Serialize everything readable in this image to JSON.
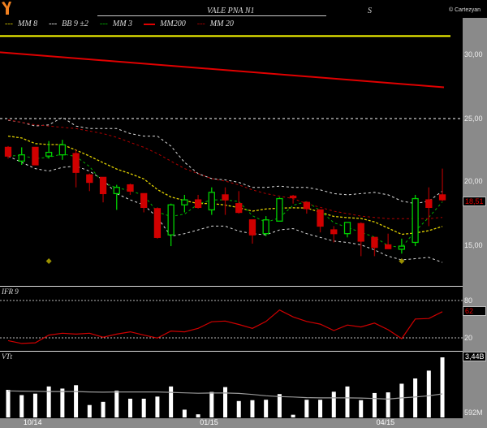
{
  "header": {
    "title": "VALE PNA N1",
    "period": "S",
    "copyright": "© Cartezyan"
  },
  "legend": [
    {
      "label": "MM  8",
      "color": "#e0d000",
      "style": "dashed"
    },
    {
      "label": "BB  9 ±2",
      "color": "#ffffff",
      "style": "dashed"
    },
    {
      "label": "MM  3",
      "color": "#00c000",
      "style": "dashed"
    },
    {
      "label": "MM200",
      "color": "#e00000",
      "style": "solid"
    },
    {
      "label": "MM 20",
      "color": "#c00000",
      "style": "dashed"
    }
  ],
  "colors": {
    "up": "#00d000",
    "down": "#d00000",
    "axis_panel": "#8a8a8a",
    "mm200": "#e00000",
    "level_line": "#ffff00",
    "marker": "#9a9000"
  },
  "panels": {
    "ifr_label": "IFR 9",
    "vol_label": "VTt"
  },
  "chart_data": [
    {
      "type": "candlestick",
      "title": "VALE PNA N1",
      "ylim": [
        12,
        32
      ],
      "yticks": [
        "30,00",
        "25,00",
        "20,00",
        "15,00"
      ],
      "last_value": "18,51",
      "level_lines": [
        {
          "value": 31.6,
          "color": "#ffff00",
          "style": "solid"
        },
        {
          "value": 25,
          "color": "#ffffff",
          "style": "dotted"
        }
      ],
      "candles": [
        [
          22.7,
          22.8,
          21.8,
          22.0
        ],
        [
          21.6,
          22.7,
          21.3,
          22.1
        ],
        [
          22.7,
          22.7,
          21.3,
          21.3
        ],
        [
          22.0,
          23.2,
          21.8,
          22.3
        ],
        [
          22.1,
          23.3,
          21.7,
          22.9
        ],
        [
          22.2,
          22.5,
          19.5,
          20.7
        ],
        [
          20.5,
          20.6,
          19.2,
          19.9
        ],
        [
          20.3,
          20.3,
          18.3,
          19.0
        ],
        [
          19.0,
          19.7,
          17.7,
          19.5
        ],
        [
          19.7,
          19.8,
          18.9,
          19.2
        ],
        [
          19.0,
          19.0,
          17.5,
          17.9
        ],
        [
          17.8,
          17.9,
          15.4,
          15.5
        ],
        [
          15.7,
          18.2,
          14.8,
          18.1
        ],
        [
          18.1,
          18.9,
          17.5,
          18.5
        ],
        [
          18.5,
          18.9,
          17.8,
          17.9
        ],
        [
          17.7,
          19.5,
          17.3,
          19.1
        ],
        [
          18.9,
          19.5,
          17.3,
          18.5
        ],
        [
          18.2,
          19.2,
          17.4,
          17.5
        ],
        [
          16.9,
          16.9,
          15.0,
          15.7
        ],
        [
          15.8,
          17.2,
          15.6,
          16.9
        ],
        [
          16.8,
          18.7,
          16.8,
          18.6
        ],
        [
          18.8,
          18.9,
          18.2,
          18.7
        ],
        [
          18.3,
          18.4,
          17.4,
          17.8
        ],
        [
          17.7,
          17.7,
          15.9,
          16.4
        ],
        [
          16.1,
          16.4,
          15.1,
          15.8
        ],
        [
          15.8,
          16.7,
          15.5,
          16.7
        ],
        [
          16.6,
          16.7,
          14.0,
          15.2
        ],
        [
          15.5,
          15.5,
          14.0,
          14.7
        ],
        [
          14.9,
          15.8,
          14.6,
          14.6
        ],
        [
          14.55,
          15.4,
          14.2,
          14.8
        ],
        [
          15.1,
          18.9,
          14.8,
          18.6
        ],
        [
          18.5,
          19.5,
          16.4,
          17.9
        ],
        [
          18.9,
          21.0,
          18.4,
          18.51
        ]
      ],
      "candle_fields": [
        "open",
        "high",
        "low",
        "close"
      ],
      "mm200": {
        "start": 30.3,
        "end": 27.5
      },
      "bb_upper": [
        24.87,
        24.7,
        24.4,
        24.5,
        25.1,
        24.4,
        24.2,
        24.2,
        24.2,
        23.8,
        23.6,
        23.6,
        22.8,
        21.5,
        20.6,
        20.2,
        20.1,
        19.9,
        19.5,
        19.5,
        19.6,
        19.5,
        19.5,
        19.3,
        19.0,
        18.9,
        19.0,
        19.1,
        18.9,
        18.4,
        18.2,
        18.4,
        19.2
      ],
      "bb_lower": [
        22.0,
        21.5,
        21.0,
        20.8,
        21.1,
        21.2,
        20.8,
        20.1,
        19.0,
        18.5,
        18.1,
        17.1,
        15.6,
        15.8,
        16.1,
        16.4,
        16.4,
        16.0,
        15.8,
        15.7,
        16.1,
        16.2,
        15.8,
        15.5,
        15.2,
        15.1,
        14.9,
        14.5,
        14.0,
        13.7,
        13.8,
        13.9,
        13.5
      ],
      "mm20": [
        24.9,
        24.7,
        24.5,
        24.4,
        24.3,
        24.2,
        24.0,
        23.8,
        23.5,
        23.1,
        22.7,
        22.2,
        21.6,
        21.0,
        20.6,
        20.2,
        20.0,
        19.7,
        19.3,
        19.0,
        18.8,
        18.6,
        18.2,
        17.9,
        17.6,
        17.4,
        17.2,
        17.1,
        17.0,
        17.0,
        17.0,
        17.0,
        17.1
      ],
      "markers": [
        {
          "index": 3,
          "value": 13.6
        },
        {
          "index": 29,
          "value": 13.6
        }
      ]
    },
    {
      "type": "line",
      "name": "IFR 9",
      "ylim": [
        0,
        100
      ],
      "yticks": [
        "80",
        "20"
      ],
      "levels": [
        80,
        20
      ],
      "last_value": "62",
      "values": [
        15.6,
        11,
        12,
        24.4,
        27.4,
        26,
        27.4,
        21,
        26,
        29.6,
        24.4,
        19.6,
        31,
        29.6,
        35.3,
        45.8,
        47,
        41.5,
        35.3,
        46.3,
        64.7,
        53.7,
        46.3,
        42,
        31.8,
        40.6,
        37.5,
        43.7,
        33,
        18.7,
        50.2,
        51,
        62
      ]
    },
    {
      "type": "bar",
      "name": "VTt",
      "unit": "B",
      "ylim": [
        0.592,
        3.44
      ],
      "yticks": [
        "3,44B",
        "592M"
      ],
      "values": [
        1.9,
        1.65,
        1.72,
        2.06,
        1.96,
        2.12,
        1.18,
        1.33,
        1.86,
        1.48,
        1.48,
        1.58,
        2.06,
        0.96,
        0.74,
        1.8,
        2.03,
        1.37,
        1.41,
        1.43,
        1.7,
        0.72,
        1.43,
        1.43,
        1.81,
        2.06,
        1.41,
        1.75,
        1.78,
        2.19,
        2.44,
        2.81,
        3.44
      ],
      "average": [
        1.85,
        1.84,
        1.83,
        1.82,
        1.82,
        1.82,
        1.8,
        1.79,
        1.8,
        1.8,
        1.8,
        1.8,
        1.78,
        1.76,
        1.74,
        1.75,
        1.75,
        1.73,
        1.68,
        1.62,
        1.58,
        1.56,
        1.53,
        1.52,
        1.52,
        1.52,
        1.51,
        1.49,
        1.46,
        1.52,
        1.56,
        1.62,
        1.71
      ]
    }
  ],
  "x_ticks": [
    {
      "label": "10/14",
      "index": 1.85
    },
    {
      "label": "01/15",
      "index": 14.85
    },
    {
      "label": "04/15",
      "index": 27.85
    }
  ]
}
